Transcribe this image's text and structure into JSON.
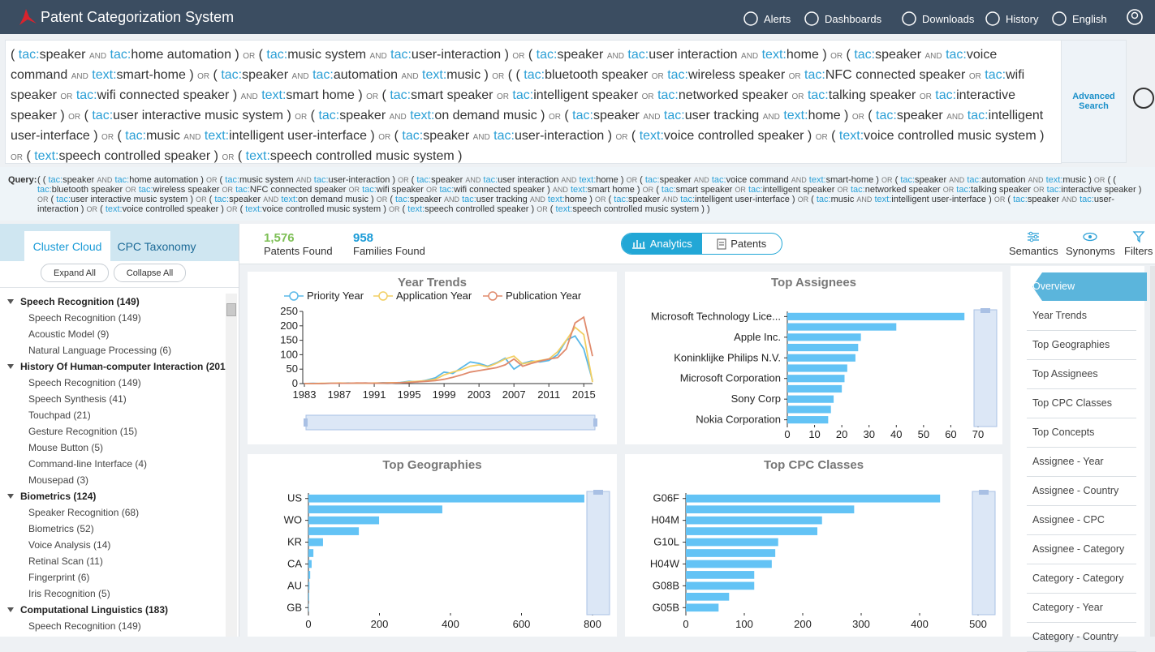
{
  "header": {
    "title": "Patent Categorization System",
    "nav": [
      "Alerts",
      "Dashboards",
      "Downloads",
      "History",
      "English"
    ]
  },
  "search": {
    "query": "( tac:speaker AND tac:home automation ) OR ( tac:music system AND tac:user-interaction ) OR ( tac:speaker AND tac:user interaction AND text:home ) OR ( tac:speaker AND tac:voice command AND text:smart-home ) OR ( tac:speaker AND tac:automation AND text:music ) OR ( ( tac:bluetooth speaker OR tac:wireless speaker OR tac:NFC connected speaker OR tac:wifi speaker OR tac:wifi connected speaker ) AND text:smart home ) OR ( tac:smart speaker OR tac:intelligent speaker OR tac:networked speaker OR tac:talking speaker OR tac:interactive speaker ) OR ( tac:user interactive music system ) OR ( tac:speaker AND text:on demand music ) OR ( tac:speaker AND tac:user tracking AND text:home ) OR ( tac:speaker AND tac:intelligent user-interface ) OR ( tac:music AND text:intelligent user-interface ) OR ( tac:speaker AND tac:user-interaction ) OR ( text:voice controlled speaker ) OR ( text:voice controlled music system ) OR ( text:speech controlled speaker ) OR ( text:speech controlled music system )",
    "advanced": "Advanced Search"
  },
  "query_line": {
    "label": "Query:",
    "text": "( ( tac:speaker AND tac:home automation ) OR ( tac:music system AND tac:user-interaction ) OR ( tac:speaker AND tac:user interaction AND text:home ) OR ( tac:speaker AND tac:voice command AND text:smart-home ) OR ( tac:speaker AND tac:automation AND text:music ) OR ( ( tac:bluetooth speaker OR tac:wireless speaker OR tac:NFC connected speaker OR tac:wifi speaker OR tac:wifi connected speaker ) AND text:smart home ) OR ( tac:smart speaker OR tac:intelligent speaker OR tac:networked speaker OR tac:talking speaker OR tac:interactive speaker ) OR ( tac:user interactive music system ) OR ( tac:speaker AND text:on demand music ) OR ( tac:speaker AND tac:user tracking AND text:home ) OR ( tac:speaker AND tac:intelligent user-interface ) OR ( tac:music AND text:intelligent user-interface ) OR ( tac:speaker AND tac:user-interaction ) OR ( text:voice controlled speaker ) OR ( text:voice controlled music system ) OR ( text:speech controlled speaker ) OR ( text:speech controlled music system ) )"
  },
  "left_panel": {
    "tabs": [
      "Cluster Cloud",
      "CPC Taxonomy"
    ],
    "buttons": [
      "Expand All",
      "Collapse All"
    ],
    "tree": [
      {
        "label": "Speech Recognition (149)",
        "children": [
          "Speech Recognition (149)",
          "Acoustic Model (9)",
          "Natural Language Processing (6)"
        ]
      },
      {
        "label": "History Of Human-computer Interaction (201)",
        "children": [
          "Speech Recognition (149)",
          "Speech Synthesis (41)",
          "Touchpad (21)",
          "Gesture Recognition (15)",
          "Mouse Button (5)",
          "Command-line Interface (4)",
          "Mousepad (3)"
        ]
      },
      {
        "label": "Biometrics (124)",
        "children": [
          "Speaker Recognition (68)",
          "Biometrics (52)",
          "Voice Analysis (14)",
          "Retinal Scan (11)",
          "Fingerprint (6)",
          "Iris Recognition (5)"
        ]
      },
      {
        "label": "Computational Linguistics (183)",
        "children": [
          "Speech Recognition (149)"
        ]
      }
    ]
  },
  "stats": [
    {
      "value": "1,576",
      "label": "Patents Found"
    },
    {
      "value": "958",
      "label": "Families Found"
    }
  ],
  "view_toggle": [
    "Analytics",
    "Patents"
  ],
  "tools": [
    "Semantics",
    "Synonyms",
    "Filters"
  ],
  "side_nav": [
    "Overview",
    "Year Trends",
    "Top Geographies",
    "Top Assignees",
    "Top CPC Classes",
    "Top Concepts",
    "Assignee - Year",
    "Assignee - Country",
    "Assignee - CPC",
    "Assignee - Category",
    "Category - Category",
    "Category - Year",
    "Category - Country"
  ],
  "chart_data": [
    {
      "type": "line",
      "title": "Year Trends",
      "x": [
        1983,
        1984,
        1985,
        1986,
        1987,
        1988,
        1989,
        1990,
        1991,
        1992,
        1993,
        1994,
        1995,
        1996,
        1997,
        1998,
        1999,
        2000,
        2001,
        2002,
        2003,
        2004,
        2005,
        2006,
        2007,
        2008,
        2009,
        2010,
        2011,
        2012,
        2013,
        2014,
        2015,
        2016
      ],
      "series": [
        {
          "name": "Priority Year",
          "color": "#5ab8e8",
          "values": [
            0,
            1,
            0,
            1,
            1,
            2,
            1,
            2,
            1,
            3,
            2,
            4,
            8,
            6,
            12,
            20,
            40,
            35,
            55,
            75,
            70,
            60,
            72,
            88,
            50,
            70,
            78,
            75,
            80,
            100,
            150,
            165,
            120,
            10
          ]
        },
        {
          "name": "Application Year",
          "color": "#f2cf63",
          "values": [
            0,
            0,
            1,
            1,
            2,
            1,
            2,
            1,
            2,
            2,
            3,
            3,
            6,
            8,
            10,
            15,
            30,
            40,
            48,
            60,
            65,
            58,
            70,
            85,
            95,
            68,
            75,
            80,
            85,
            110,
            150,
            195,
            170,
            5
          ]
        },
        {
          "name": "Publication Year",
          "color": "#e08a6c",
          "values": [
            0,
            0,
            0,
            1,
            1,
            1,
            2,
            2,
            1,
            2,
            2,
            3,
            4,
            6,
            8,
            10,
            15,
            22,
            30,
            40,
            45,
            50,
            55,
            65,
            85,
            60,
            70,
            78,
            85,
            90,
            120,
            210,
            230,
            95
          ]
        }
      ],
      "xlim": [
        1983,
        2016
      ],
      "xticks": [
        1983,
        1987,
        1991,
        1995,
        1999,
        2003,
        2007,
        2011,
        2015
      ],
      "ylim": [
        0,
        250
      ],
      "yticks": [
        0,
        50,
        100,
        150,
        200,
        250
      ]
    },
    {
      "type": "hbar",
      "title": "Top Assignees",
      "color": "#63c3f5",
      "categories": [
        "Microsoft Technology Lice...",
        null,
        "Apple Inc.",
        null,
        "Koninklijke Philips N.V.",
        null,
        "Microsoft Corporation",
        null,
        "Sony Corp",
        null,
        "Nokia Corporation"
      ],
      "values": [
        65,
        40,
        27,
        26,
        25,
        22,
        21,
        20,
        17,
        16,
        15
      ],
      "xlim": [
        0,
        70
      ],
      "xticks": [
        0,
        10,
        20,
        30,
        40,
        50,
        60,
        70
      ]
    },
    {
      "type": "hbar",
      "title": "Top Geographies",
      "color": "#63c3f5",
      "categories": [
        "US",
        null,
        "WO",
        null,
        "KR",
        null,
        "CA",
        null,
        "AU",
        null,
        "GB"
      ],
      "values": [
        777,
        377,
        199,
        142,
        41,
        14,
        9,
        5,
        3,
        2,
        1
      ],
      "xlim": [
        0,
        800
      ],
      "xticks": [
        0,
        200,
        400,
        600,
        800
      ]
    },
    {
      "type": "hbar",
      "title": "Top CPC Classes",
      "color": "#63c3f5",
      "categories": [
        "G06F",
        null,
        "H04M",
        null,
        "G10L",
        null,
        "H04W",
        null,
        "G08B",
        null,
        "G05B"
      ],
      "values": [
        435,
        288,
        233,
        225,
        158,
        153,
        147,
        117,
        117,
        74,
        56
      ],
      "xlim": [
        0,
        500
      ],
      "xticks": [
        0,
        100,
        200,
        300,
        400,
        500
      ]
    }
  ]
}
